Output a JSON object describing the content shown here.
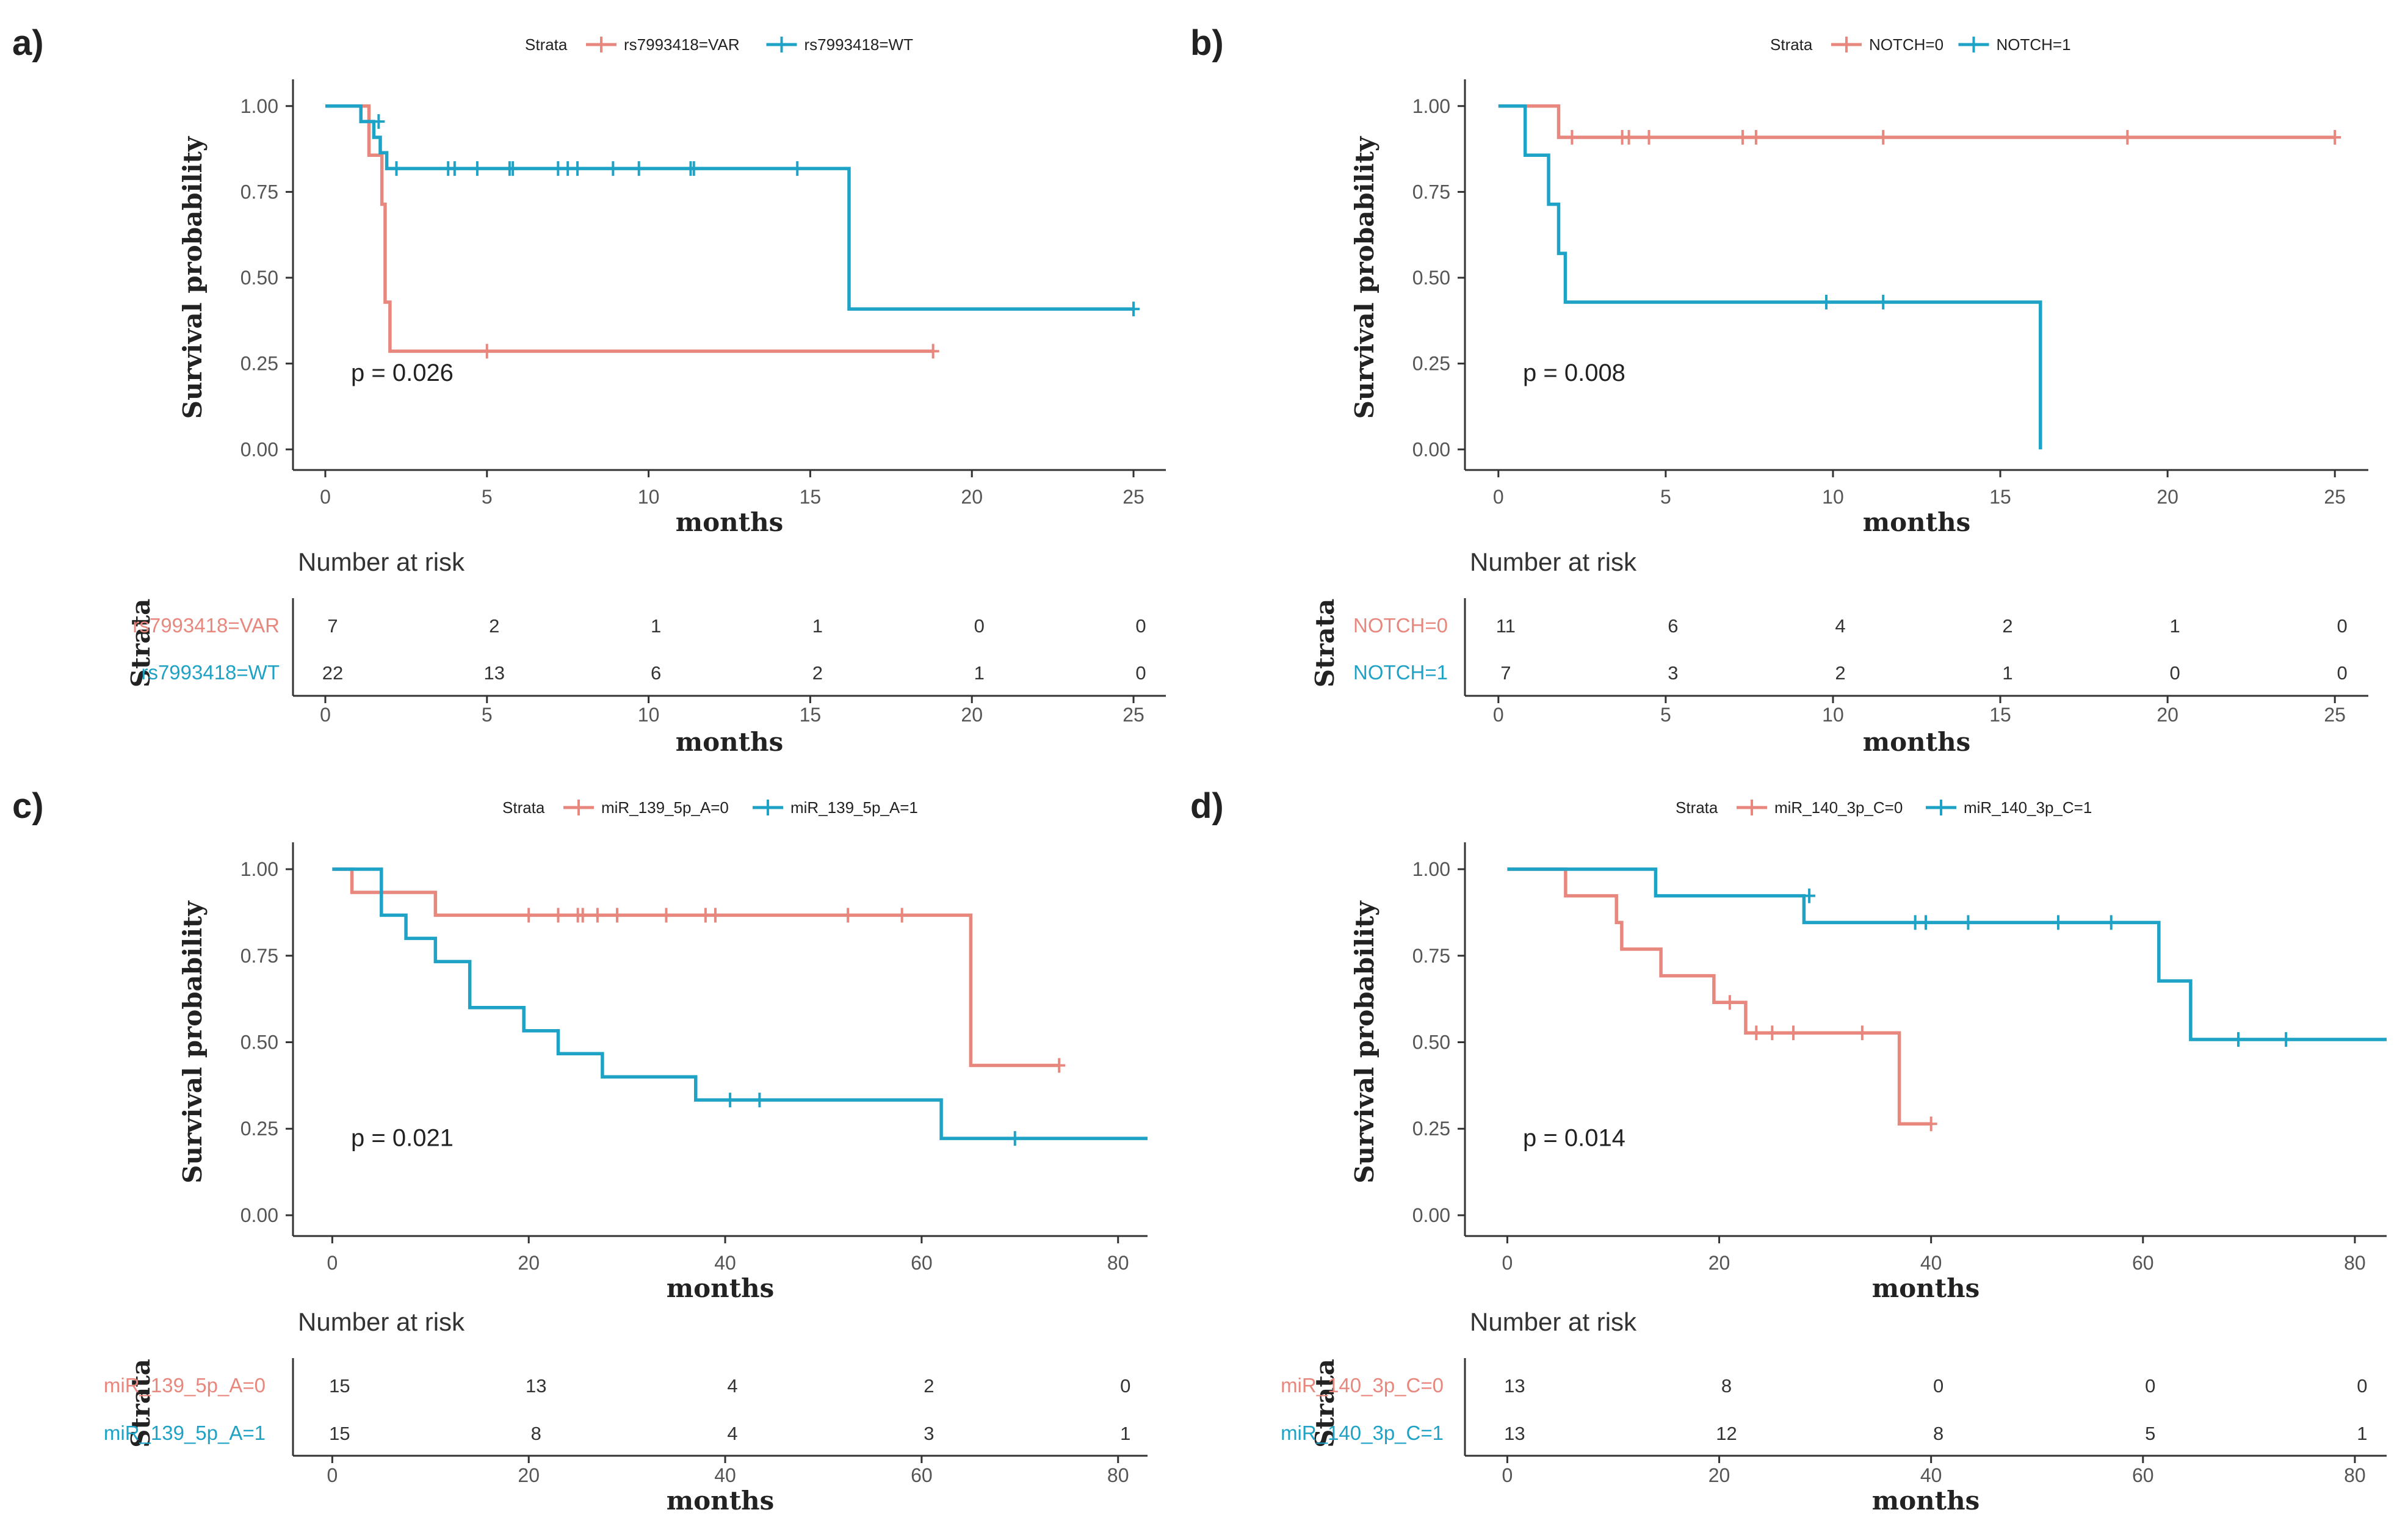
{
  "colors": {
    "group0": "#E8877D",
    "group1": "#1EA2C6",
    "axis": "#333333",
    "text": "#222222",
    "tick": "#555555"
  },
  "chart_data": [
    {
      "type": "line",
      "subtype": "kaplan-meier",
      "panel_label": "a)",
      "legend_title": "Strata",
      "series": [
        {
          "name": "rs7993418=VAR",
          "steps": [
            [
              0,
              1
            ],
            [
              1,
              1
            ],
            [
              1.35,
              0.857
            ],
            [
              1.75,
              0.714
            ],
            [
              1.85,
              0.429
            ],
            [
              2.0,
              0.286
            ],
            [
              18.8,
              0.286
            ]
          ],
          "censors": [
            [
              5.0,
              0.286
            ],
            [
              18.8,
              0.286
            ]
          ]
        },
        {
          "name": "rs7993418=WT",
          "steps": [
            [
              0,
              1
            ],
            [
              1.1,
              1
            ],
            [
              1.1,
              0.955
            ],
            [
              1.5,
              0.909
            ],
            [
              1.7,
              0.864
            ],
            [
              1.9,
              0.818
            ],
            [
              16.2,
              0.818
            ],
            [
              16.2,
              0.409
            ],
            [
              25,
              0.409
            ]
          ],
          "censors": [
            [
              1.65,
              0.955
            ],
            [
              2.2,
              0.818
            ],
            [
              3.8,
              0.818
            ],
            [
              4.0,
              0.818
            ],
            [
              4.7,
              0.818
            ],
            [
              5.7,
              0.818
            ],
            [
              5.8,
              0.818
            ],
            [
              7.2,
              0.818
            ],
            [
              7.5,
              0.818
            ],
            [
              7.8,
              0.818
            ],
            [
              8.9,
              0.818
            ],
            [
              9.7,
              0.818
            ],
            [
              11.3,
              0.818
            ],
            [
              11.4,
              0.818
            ],
            [
              14.6,
              0.818
            ],
            [
              25,
              0.409
            ]
          ]
        }
      ],
      "p_value_text": "p = 0.026",
      "ylabel": "Survival probability",
      "xlabel": "months",
      "xlim": [
        -1,
        26
      ],
      "ylim": [
        -0.06,
        1.06
      ],
      "xticks": [
        "0",
        "5",
        "10",
        "15",
        "20",
        "25"
      ],
      "yticks": [
        "0.00",
        "0.25",
        "0.50",
        "0.75",
        "1.00"
      ],
      "risk_table": {
        "title": "Number at risk",
        "strata_label": "Strata",
        "times": [
          0,
          5,
          10,
          15,
          20,
          25
        ],
        "rows": [
          {
            "name": "rs7993418=VAR",
            "counts": [
              "7",
              "2",
              "1",
              "1",
              "0",
              "0"
            ]
          },
          {
            "name": "rs7993418=WT",
            "counts": [
              "22",
              "13",
              "6",
              "2",
              "1",
              "0"
            ]
          }
        ]
      }
    },
    {
      "type": "line",
      "subtype": "kaplan-meier",
      "panel_label": "b)",
      "legend_title": "Strata",
      "series": [
        {
          "name": "NOTCH=0",
          "steps": [
            [
              0,
              1
            ],
            [
              1.8,
              1
            ],
            [
              1.8,
              0.909
            ],
            [
              25,
              0.909
            ]
          ],
          "censors": [
            [
              2.2,
              0.909
            ],
            [
              3.7,
              0.909
            ],
            [
              3.9,
              0.909
            ],
            [
              4.5,
              0.909
            ],
            [
              7.3,
              0.909
            ],
            [
              7.7,
              0.909
            ],
            [
              11.5,
              0.909
            ],
            [
              18.8,
              0.909
            ],
            [
              25,
              0.909
            ]
          ]
        },
        {
          "name": "NOTCH=1",
          "steps": [
            [
              0,
              1
            ],
            [
              0.8,
              1
            ],
            [
              0.8,
              0.857
            ],
            [
              1.5,
              0.857
            ],
            [
              1.5,
              0.714
            ],
            [
              1.8,
              0.714
            ],
            [
              1.8,
              0.571
            ],
            [
              2.0,
              0.571
            ],
            [
              2.0,
              0.429
            ],
            [
              16.2,
              0.429
            ],
            [
              16.2,
              0.0
            ]
          ],
          "censors": [
            [
              9.8,
              0.429
            ],
            [
              11.5,
              0.429
            ]
          ]
        }
      ],
      "p_value_text": "p = 0.008",
      "ylabel": "Survival probability",
      "xlabel": "months",
      "xlim": [
        -1,
        26
      ],
      "ylim": [
        -0.06,
        1.06
      ],
      "xticks": [
        "0",
        "5",
        "10",
        "15",
        "20",
        "25"
      ],
      "yticks": [
        "0.00",
        "0.25",
        "0.50",
        "0.75",
        "1.00"
      ],
      "risk_table": {
        "title": "Number at risk",
        "strata_label": "Strata",
        "times": [
          0,
          5,
          10,
          15,
          20,
          25
        ],
        "rows": [
          {
            "name": "NOTCH=0",
            "counts": [
              "11",
              "6",
              "4",
              "2",
              "1",
              "0"
            ]
          },
          {
            "name": "NOTCH=1",
            "counts": [
              "7",
              "3",
              "2",
              "1",
              "0",
              "0"
            ]
          }
        ]
      }
    },
    {
      "type": "line",
      "subtype": "kaplan-meier",
      "panel_label": "c)",
      "legend_title": "Strata",
      "series": [
        {
          "name": "miR_139_5p_A=0",
          "steps": [
            [
              0,
              1
            ],
            [
              2,
              1
            ],
            [
              2,
              0.933
            ],
            [
              10.5,
              0.933
            ],
            [
              10.5,
              0.867
            ],
            [
              65,
              0.867
            ],
            [
              65,
              0.433
            ],
            [
              74,
              0.433
            ]
          ],
          "censors": [
            [
              20,
              0.867
            ],
            [
              23,
              0.867
            ],
            [
              25,
              0.867
            ],
            [
              25.5,
              0.867
            ],
            [
              27,
              0.867
            ],
            [
              29,
              0.867
            ],
            [
              34,
              0.867
            ],
            [
              38,
              0.867
            ],
            [
              39,
              0.867
            ],
            [
              52.5,
              0.867
            ],
            [
              58,
              0.867
            ],
            [
              74,
              0.433
            ]
          ]
        },
        {
          "name": "miR_139_5p_A=1",
          "steps": [
            [
              0,
              1
            ],
            [
              5,
              1
            ],
            [
              5,
              0.867
            ],
            [
              7.5,
              0.867
            ],
            [
              7.5,
              0.8
            ],
            [
              10.5,
              0.8
            ],
            [
              10.5,
              0.733
            ],
            [
              14,
              0.733
            ],
            [
              14,
              0.6
            ],
            [
              19.5,
              0.6
            ],
            [
              19.5,
              0.533
            ],
            [
              23,
              0.533
            ],
            [
              23,
              0.467
            ],
            [
              27.5,
              0.467
            ],
            [
              27.5,
              0.4
            ],
            [
              37,
              0.4
            ],
            [
              37,
              0.333
            ],
            [
              62,
              0.333
            ],
            [
              62,
              0.222
            ],
            [
              83,
              0.222
            ]
          ],
          "censors": [
            [
              40.5,
              0.333
            ],
            [
              43.5,
              0.333
            ],
            [
              69.5,
              0.222
            ]
          ]
        }
      ],
      "p_value_text": "p = 0.021",
      "ylabel": "Survival probability",
      "xlabel": "months",
      "xlim": [
        -4,
        83
      ],
      "ylim": [
        -0.06,
        1.06
      ],
      "xticks": [
        "0",
        "20",
        "40",
        "60",
        "80"
      ],
      "yticks": [
        "0.00",
        "0.25",
        "0.50",
        "0.75",
        "1.00"
      ],
      "risk_table": {
        "title": "Number at risk",
        "strata_label": "Strata",
        "times": [
          0,
          20,
          40,
          60,
          80
        ],
        "rows": [
          {
            "name": "miR_139_5p_A=0",
            "counts": [
              "15",
              "13",
              "4",
              "2",
              "0"
            ]
          },
          {
            "name": "miR_139_5p_A=1",
            "counts": [
              "15",
              "8",
              "4",
              "3",
              "1"
            ]
          }
        ]
      }
    },
    {
      "type": "line",
      "subtype": "kaplan-meier",
      "panel_label": "d)",
      "legend_title": "Strata",
      "series": [
        {
          "name": "miR_140_3p_C=0",
          "steps": [
            [
              0,
              1
            ],
            [
              5.5,
              1
            ],
            [
              5.5,
              0.923
            ],
            [
              10.3,
              0.923
            ],
            [
              10.3,
              0.846
            ],
            [
              10.8,
              0.846
            ],
            [
              10.8,
              0.769
            ],
            [
              14.5,
              0.769
            ],
            [
              14.5,
              0.692
            ],
            [
              19.5,
              0.692
            ],
            [
              19.5,
              0.615
            ],
            [
              22.5,
              0.615
            ],
            [
              22.5,
              0.527
            ],
            [
              37,
              0.527
            ],
            [
              37,
              0.264
            ],
            [
              40,
              0.264
            ]
          ],
          "censors": [
            [
              21,
              0.615
            ],
            [
              23.5,
              0.527
            ],
            [
              25,
              0.527
            ],
            [
              27,
              0.527
            ],
            [
              33.5,
              0.527
            ],
            [
              40,
              0.264
            ]
          ]
        },
        {
          "name": "miR_140_3p_C=1",
          "steps": [
            [
              0,
              1
            ],
            [
              14,
              1
            ],
            [
              14,
              0.923
            ],
            [
              28,
              0.923
            ],
            [
              28,
              0.846
            ],
            [
              61.5,
              0.846
            ],
            [
              61.5,
              0.677
            ],
            [
              64.5,
              0.677
            ],
            [
              64.5,
              0.508
            ],
            [
              83,
              0.508
            ]
          ],
          "censors": [
            [
              28.5,
              0.923
            ],
            [
              38.5,
              0.846
            ],
            [
              39.5,
              0.846
            ],
            [
              43.5,
              0.846
            ],
            [
              52,
              0.846
            ],
            [
              57,
              0.846
            ],
            [
              69,
              0.508
            ],
            [
              73.5,
              0.508
            ]
          ]
        }
      ],
      "p_value_text": "p = 0.014",
      "ylabel": "Survival probability",
      "xlabel": "months",
      "xlim": [
        -4,
        83
      ],
      "ylim": [
        -0.06,
        1.06
      ],
      "xticks": [
        "0",
        "20",
        "40",
        "60",
        "80"
      ],
      "yticks": [
        "0.00",
        "0.25",
        "0.50",
        "0.75",
        "1.00"
      ],
      "risk_table": {
        "title": "Number at risk",
        "strata_label": "Strata",
        "times": [
          0,
          20,
          40,
          60,
          80
        ],
        "rows": [
          {
            "name": "miR_140_3p_C=0",
            "counts": [
              "13",
              "8",
              "0",
              "0",
              "0"
            ]
          },
          {
            "name": "miR_140_3p_C=1",
            "counts": [
              "13",
              "12",
              "8",
              "5",
              "1"
            ]
          }
        ]
      }
    }
  ]
}
